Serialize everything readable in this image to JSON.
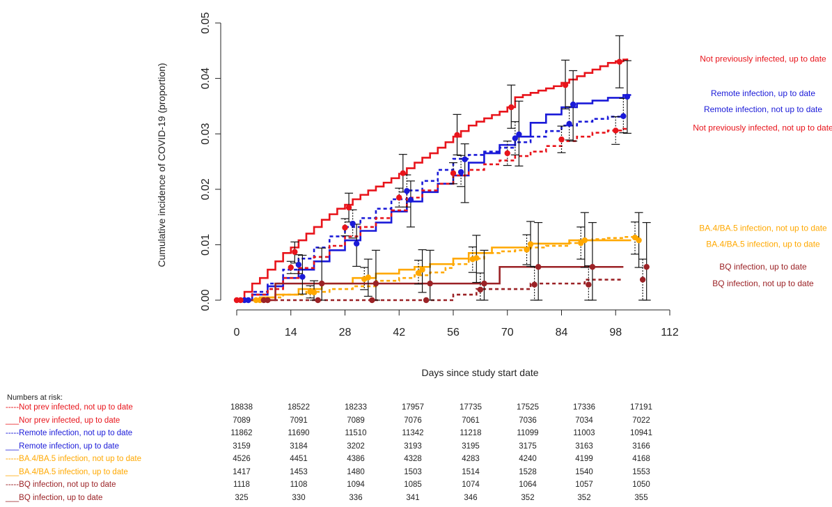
{
  "chart_data": {
    "type": "line",
    "ylabel": "Cumulative incidence of COVID-19 (proportion)",
    "xlabel": "Days since study start date",
    "xlim": [
      0,
      112
    ],
    "ylim": [
      0,
      0.05
    ],
    "x_ticks": [
      0,
      14,
      28,
      42,
      56,
      70,
      84,
      98,
      112
    ],
    "y_ticks": [
      "0.00",
      "0.01",
      "0.02",
      "0.03",
      "0.04",
      "0.05"
    ],
    "grid": false,
    "legend_position": "right",
    "series": [
      {
        "name": "Not previously infected, up to date",
        "color": "#e8141b",
        "dash": "solid",
        "x": [
          0,
          2,
          4,
          6,
          8,
          10,
          12,
          14,
          16,
          18,
          20,
          22,
          24,
          26,
          28,
          30,
          32,
          34,
          36,
          38,
          40,
          42,
          44,
          46,
          48,
          50,
          52,
          54,
          56,
          58,
          60,
          62,
          64,
          66,
          68,
          70,
          72,
          74,
          76,
          78,
          80,
          82,
          84,
          86,
          88,
          90,
          92,
          94,
          96,
          98,
          100,
          101
        ],
        "y": [
          0,
          0.0015,
          0.003,
          0.004,
          0.0055,
          0.007,
          0.0085,
          0.0095,
          0.0108,
          0.012,
          0.0132,
          0.0145,
          0.0155,
          0.0165,
          0.0172,
          0.0182,
          0.019,
          0.0198,
          0.0205,
          0.0212,
          0.022,
          0.0228,
          0.0238,
          0.0248,
          0.0257,
          0.0265,
          0.0275,
          0.0285,
          0.0295,
          0.0305,
          0.0315,
          0.0322,
          0.0328,
          0.0334,
          0.034,
          0.0348,
          0.0366,
          0.037,
          0.0374,
          0.0378,
          0.0382,
          0.0386,
          0.0392,
          0.0398,
          0.0404,
          0.041,
          0.0416,
          0.0422,
          0.0428,
          0.0431,
          0.0434,
          0.0436
        ],
        "points_x": [
          0,
          15,
          29,
          43,
          57,
          71,
          85,
          99
        ],
        "points_y": [
          0,
          0.0087,
          0.0167,
          0.0229,
          0.0298,
          0.0348,
          0.0388,
          0.043
        ],
        "ci_low": [
          0,
          0.0067,
          0.0141,
          0.0195,
          0.0262,
          0.031,
          0.0345,
          0.0383
        ],
        "ci_high": [
          0,
          0.0105,
          0.0193,
          0.0263,
          0.0335,
          0.0388,
          0.0433,
          0.0477
        ]
      },
      {
        "name": "Remote infection, up to date",
        "color": "#1a1ad8",
        "dash": "solid",
        "x": [
          0,
          4,
          8,
          12,
          16,
          20,
          24,
          28,
          32,
          36,
          40,
          44,
          48,
          52,
          56,
          60,
          64,
          68,
          72,
          76,
          80,
          84,
          88,
          92,
          96,
          100,
          102
        ],
        "y": [
          0,
          0.001,
          0.0025,
          0.004,
          0.0055,
          0.007,
          0.009,
          0.0108,
          0.0125,
          0.014,
          0.016,
          0.0178,
          0.0195,
          0.021,
          0.0225,
          0.0248,
          0.0265,
          0.028,
          0.0295,
          0.032,
          0.0335,
          0.0348,
          0.0355,
          0.036,
          0.0365,
          0.037,
          0.037
        ],
        "points_x": [
          3,
          17,
          31,
          45,
          59,
          73,
          87,
          101
        ],
        "points_y": [
          0,
          0.0042,
          0.0102,
          0.0181,
          0.0254,
          0.0299,
          0.0353,
          0.0367
        ],
        "ci_low": [
          0,
          0.0011,
          0.0061,
          0.0132,
          0.0176,
          0.0242,
          0.0287,
          0.0301
        ],
        "ci_high": [
          0,
          0.0081,
          0.0137,
          0.0215,
          0.0282,
          0.0359,
          0.0414,
          0.0432
        ]
      },
      {
        "name": "Remote infection, not up to date",
        "color": "#1a1ad8",
        "dash": "dashed",
        "x": [
          0,
          4,
          8,
          12,
          16,
          20,
          24,
          28,
          32,
          36,
          40,
          44,
          48,
          52,
          56,
          60,
          64,
          68,
          72,
          76,
          80,
          84,
          88,
          92,
          96,
          100,
          101
        ],
        "y": [
          0,
          0.0015,
          0.003,
          0.0055,
          0.0075,
          0.0095,
          0.0115,
          0.0132,
          0.0148,
          0.0165,
          0.0182,
          0.0198,
          0.0215,
          0.0235,
          0.0255,
          0.0262,
          0.0268,
          0.0275,
          0.0285,
          0.0295,
          0.0305,
          0.0315,
          0.0322,
          0.0327,
          0.0331,
          0.0335,
          0.0335
        ],
        "points_x": [
          2,
          16,
          30,
          44,
          58,
          72,
          86,
          100
        ],
        "points_y": [
          0,
          0.0064,
          0.0138,
          0.0197,
          0.0231,
          0.0292,
          0.0318,
          0.0332
        ],
        "ci_low": [
          0,
          0.0048,
          0.0112,
          0.0168,
          0.0205,
          0.0262,
          0.0289,
          0.0302
        ],
        "ci_high": [
          0,
          0.0082,
          0.0163,
          0.0226,
          0.0261,
          0.0322,
          0.0349,
          0.0364
        ]
      },
      {
        "name": "Not previously infected, not up to date",
        "color": "#e8141b",
        "dash": "dashed",
        "x": [
          0,
          4,
          8,
          12,
          16,
          20,
          24,
          28,
          32,
          36,
          40,
          44,
          48,
          52,
          56,
          60,
          64,
          68,
          72,
          76,
          80,
          84,
          88,
          92,
          96,
          100,
          101
        ],
        "y": [
          0,
          0.001,
          0.002,
          0.004,
          0.0058,
          0.0078,
          0.0098,
          0.0115,
          0.0132,
          0.0148,
          0.0162,
          0.0185,
          0.0198,
          0.021,
          0.0225,
          0.0235,
          0.0245,
          0.0252,
          0.026,
          0.0268,
          0.0278,
          0.0287,
          0.0295,
          0.0302,
          0.0306,
          0.0309,
          0.031
        ],
        "points_x": [
          1,
          14,
          28,
          42,
          56,
          70,
          84,
          98
        ],
        "points_y": [
          0,
          0.0059,
          0.0131,
          0.0185,
          0.0229,
          0.0265,
          0.029,
          0.0306
        ],
        "ci_low": [
          0,
          0.0048,
          0.0116,
          0.0168,
          0.021,
          0.0243,
          0.0266,
          0.0281
        ],
        "ci_high": [
          0,
          0.007,
          0.0147,
          0.0202,
          0.0248,
          0.0287,
          0.0314,
          0.0331
        ]
      },
      {
        "name": "BA.4/BA.5 infection, not up to date",
        "color": "#ffa800",
        "dash": "dashed",
        "x": [
          0,
          4,
          8,
          12,
          18,
          24,
          30,
          36,
          42,
          46,
          50,
          54,
          56,
          60,
          64,
          68,
          72,
          76,
          80,
          86,
          88,
          92,
          96,
          100,
          104
        ],
        "y": [
          0,
          0,
          0.0005,
          0.001,
          0.0015,
          0.002,
          0.0025,
          0.0035,
          0.004,
          0.0045,
          0.005,
          0.0058,
          0.0065,
          0.0075,
          0.0085,
          0.0088,
          0.009,
          0.0095,
          0.0098,
          0.0103,
          0.0108,
          0.011,
          0.0112,
          0.0114,
          0.0114
        ],
        "points_x": [
          5,
          19,
          33,
          47,
          61,
          75,
          89,
          103
        ],
        "points_y": [
          0,
          0.0015,
          0.0038,
          0.0049,
          0.0074,
          0.0091,
          0.0103,
          0.0113
        ],
        "ci_low": [
          0,
          0.0004,
          0.0019,
          0.0029,
          0.005,
          0.0064,
          0.0074,
          0.0083
        ],
        "ci_high": [
          0,
          0.0026,
          0.0059,
          0.0072,
          0.0096,
          0.0118,
          0.0132,
          0.0141
        ]
      },
      {
        "name": "BA.4/BA.5 infection, up to date",
        "color": "#ffa800",
        "dash": "solid",
        "x": [
          0,
          6,
          10,
          16,
          22,
          30,
          36,
          42,
          46,
          50,
          56,
          60,
          66,
          70,
          76,
          80,
          86,
          90,
          96,
          102
        ],
        "y": [
          0,
          0.0005,
          0.001,
          0.002,
          0.003,
          0.004,
          0.0048,
          0.0055,
          0.006,
          0.0065,
          0.0075,
          0.0085,
          0.0095,
          0.0095,
          0.0102,
          0.0102,
          0.0108,
          0.0108,
          0.0108,
          0.0108
        ],
        "points_x": [
          6,
          20,
          34,
          48,
          62,
          76,
          90,
          104
        ],
        "points_y": [
          0,
          0.0014,
          0.0041,
          0.0055,
          0.0076,
          0.0101,
          0.0108,
          0.0108
        ],
        "ci_low": [
          0,
          0,
          0.0007,
          0.0014,
          0.0032,
          0.0061,
          0.0059,
          0.0059
        ],
        "ci_high": [
          0,
          0.0035,
          0.0074,
          0.0091,
          0.0117,
          0.0142,
          0.0158,
          0.0158
        ]
      },
      {
        "name": "BQ infection, up to date",
        "color": "#9b2226",
        "dash": "solid",
        "x": [
          0,
          8,
          10,
          16,
          20,
          28,
          36,
          44,
          52,
          58,
          64,
          68,
          74,
          80,
          88,
          94,
          100
        ],
        "y": [
          0,
          0,
          0.003,
          0.003,
          0.003,
          0.003,
          0.003,
          0.003,
          0.003,
          0.003,
          0.003,
          0.006,
          0.006,
          0.006,
          0.006,
          0.006,
          0.006
        ],
        "points_x": [
          8,
          22,
          36,
          50,
          64,
          78,
          92,
          106
        ],
        "points_y": [
          0,
          0.003,
          0.003,
          0.003,
          0.003,
          0.006,
          0.006,
          0.006
        ],
        "ci_low": [
          0,
          0,
          0,
          0,
          0,
          0,
          0,
          0
        ],
        "ci_high": [
          0,
          0.0094,
          0.009,
          0.009,
          0.009,
          0.014,
          0.014,
          0.014
        ]
      },
      {
        "name": "BQ infection, not up to date",
        "color": "#9b2226",
        "dash": "dashed",
        "x": [
          0,
          6,
          12,
          20,
          28,
          36,
          44,
          52,
          56,
          62,
          66,
          72,
          76,
          80,
          86,
          90,
          96,
          100
        ],
        "y": [
          0,
          0,
          0,
          0,
          0,
          0,
          0,
          0,
          0.001,
          0.002,
          0.002,
          0.002,
          0.003,
          0.003,
          0.003,
          0.0037,
          0.0037,
          0.0037
        ],
        "points_x": [
          7,
          21,
          35,
          49,
          63,
          77,
          91,
          105
        ],
        "points_y": [
          0,
          0,
          0,
          0,
          0.0019,
          0.0028,
          0.0028,
          0.0037
        ],
        "ci_low": [
          0,
          0,
          0,
          0,
          0,
          0,
          0,
          0
        ],
        "ci_high": [
          0,
          0,
          0,
          0,
          0.0049,
          0.006,
          0.0062,
          0.0074
        ]
      }
    ],
    "right_labels": [
      {
        "text": "Not previously infected, up to date",
        "color": "#e8141b",
        "y": 0.0435
      },
      {
        "text": "Remote infection, up to date",
        "color": "#1a1ad8",
        "y": 0.0373
      },
      {
        "text": "Remote infection, not up to date",
        "color": "#1a1ad8",
        "y": 0.0344
      },
      {
        "text": "Not previously infected, not up to date",
        "color": "#e8141b",
        "y": 0.0311
      },
      {
        "text": "BA.4/BA.5 infection, not up to date",
        "color": "#ffa800",
        "y": 0.013
      },
      {
        "text": "BA.4/BA.5 infection, up to date",
        "color": "#ffa800",
        "y": 0.0101
      },
      {
        "text": "BQ infection, up to date",
        "color": "#9b2226",
        "y": 0.006
      },
      {
        "text": "BQ infection, not up to date",
        "color": "#9b2226",
        "y": 0.003
      }
    ]
  },
  "risk_table": {
    "title": "Numbers at risk:",
    "rows": [
      {
        "label": "-----Not prev infected, not up to date",
        "color": "#e8141b",
        "values": [
          "18838",
          "18522",
          "18233",
          "17957",
          "17735",
          "17525",
          "17336",
          "17191"
        ]
      },
      {
        "label": "___Nor prev infected, up to date",
        "color": "#e8141b",
        "values": [
          "7089",
          "7091",
          "7089",
          "7076",
          "7061",
          "7036",
          "7034",
          "7022"
        ]
      },
      {
        "label": "-----Remote infection, not up to date",
        "color": "#1a1ad8",
        "values": [
          "11862",
          "11690",
          "11510",
          "11342",
          "11218",
          "11099",
          "11003",
          "10941"
        ]
      },
      {
        "label": "___Remote infection, up to date",
        "color": "#1a1ad8",
        "values": [
          "3159",
          "3184",
          "3202",
          "3193",
          "3195",
          "3175",
          "3163",
          "3166"
        ]
      },
      {
        "label": "-----BA.4/BA.5 infection, not up to date",
        "color": "#ffa800",
        "values": [
          "4526",
          "4451",
          "4386",
          "4328",
          "4283",
          "4240",
          "4199",
          "4168"
        ]
      },
      {
        "label": "___BA.4/BA.5 infection, up to date",
        "color": "#ffa800",
        "values": [
          "1417",
          "1453",
          "1480",
          "1503",
          "1514",
          "1528",
          "1540",
          "1553"
        ]
      },
      {
        "label": "-----BQ infection, not up to date",
        "color": "#9b2226",
        "values": [
          "1118",
          "1108",
          "1094",
          "1085",
          "1074",
          "1064",
          "1057",
          "1050"
        ]
      },
      {
        "label": "___BQ infection, up to date",
        "color": "#9b2226",
        "values": [
          "325",
          "330",
          "336",
          "341",
          "346",
          "352",
          "352",
          "355"
        ]
      }
    ]
  }
}
